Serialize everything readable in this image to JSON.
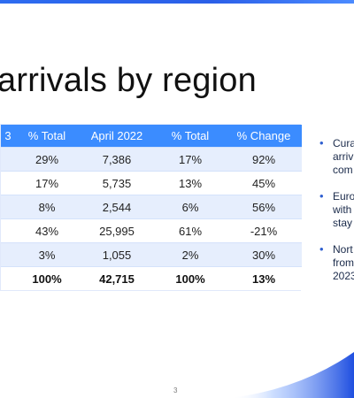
{
  "title": "arrivals by region",
  "table": {
    "headers": [
      "3",
      "% Total",
      "April 2022",
      "% Total",
      "% Change"
    ],
    "rows": [
      [
        "",
        "29%",
        "7,386",
        "17%",
        "92%"
      ],
      [
        "",
        "17%",
        "5,735",
        "13%",
        "45%"
      ],
      [
        "",
        "8%",
        "2,544",
        "6%",
        "56%"
      ],
      [
        "",
        "43%",
        "25,995",
        "61%",
        "-21%"
      ],
      [
        "",
        "3%",
        "1,055",
        "2%",
        "30%"
      ]
    ],
    "total_row": [
      "",
      "100%",
      "42,715",
      "100%",
      "13%"
    ]
  },
  "bullets": [
    {
      "lines": [
        "Cura",
        "arriv",
        "com"
      ]
    },
    {
      "lines": [
        "Euro",
        "with",
        "stay"
      ]
    },
    {
      "lines": [
        "Nort",
        "from",
        "2023"
      ]
    }
  ],
  "page_number": "3",
  "colors": {
    "header_bg": "#3b8cff",
    "alt_row_bg": "#e6eefd",
    "accent": "#2b5fe8"
  }
}
